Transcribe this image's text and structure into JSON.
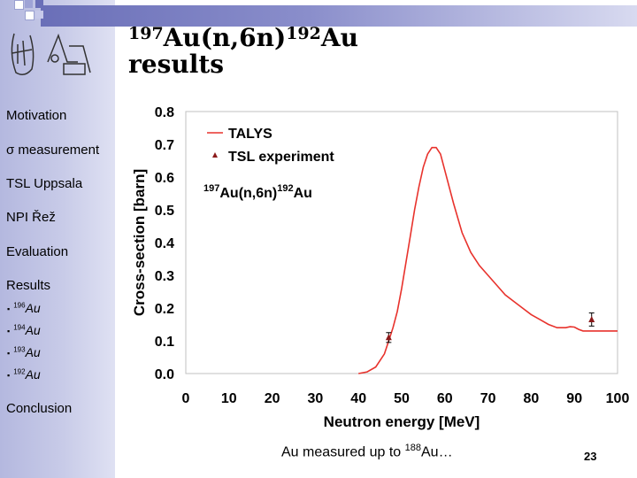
{
  "slide": {
    "title_part1_mass": "197",
    "title_part1": "Au(n,6n)",
    "title_part2_mass": "192",
    "title_part2": "Au",
    "title_line2": "results",
    "footer_note_prefix": "Au measured up to ",
    "footer_note_mass": "188",
    "footer_note_suffix": "Au…",
    "page_number": "23"
  },
  "sidebar": {
    "items": [
      {
        "label": "Motivation"
      },
      {
        "label": "σ measurement"
      },
      {
        "label": "TSL Uppsala"
      },
      {
        "label": "NPI Řež"
      },
      {
        "label": "Evaluation"
      },
      {
        "label": "Results"
      }
    ],
    "sub_items": [
      {
        "bullet": "▪",
        "mass": "196",
        "label": "Au"
      },
      {
        "bullet": "▪",
        "mass": "194",
        "label": "Au"
      },
      {
        "bullet": "▪",
        "mass": "193",
        "label": "Au"
      },
      {
        "bullet": "▪",
        "mass": "192",
        "label": "Au"
      }
    ],
    "last_item": "Conclusion"
  },
  "colors": {
    "sidebar": "#c8cbe8",
    "topbar": "#6a6fb8",
    "talys_line": "#e8322c",
    "experiment_marker": "#8b1a1a"
  },
  "chart_data": {
    "type": "line",
    "xlabel": "Neutron energy [MeV]",
    "ylabel": "Cross-section [barn]",
    "xlim": [
      0,
      100
    ],
    "ylim": [
      0,
      0.8
    ],
    "xticks": [
      "0",
      "10",
      "20",
      "30",
      "40",
      "50",
      "60",
      "70",
      "80",
      "90",
      "100"
    ],
    "yticks": [
      "0.0",
      "0.1",
      "0.2",
      "0.3",
      "0.4",
      "0.5",
      "0.6",
      "0.7",
      "0.8"
    ],
    "annotation": {
      "mass1": "197",
      "text1": "Au(n,6n)",
      "mass2": "192",
      "text2": "Au"
    },
    "legend": {
      "position": "top-left"
    },
    "series": [
      {
        "name": "TALYS",
        "kind": "line",
        "x": [
          40,
          42,
          44,
          46,
          47,
          48,
          49,
          50,
          51,
          52,
          53,
          54,
          55,
          56,
          57,
          58,
          59,
          60,
          62,
          64,
          66,
          68,
          70,
          72,
          74,
          76,
          78,
          80,
          82,
          84,
          86,
          88,
          89,
          90,
          91,
          92,
          93,
          94,
          96,
          98,
          100
        ],
        "y": [
          0.0,
          0.005,
          0.02,
          0.06,
          0.1,
          0.14,
          0.19,
          0.26,
          0.34,
          0.42,
          0.5,
          0.57,
          0.63,
          0.67,
          0.69,
          0.69,
          0.67,
          0.62,
          0.52,
          0.43,
          0.37,
          0.33,
          0.3,
          0.27,
          0.24,
          0.22,
          0.2,
          0.18,
          0.165,
          0.15,
          0.14,
          0.14,
          0.143,
          0.142,
          0.135,
          0.13,
          0.13,
          0.13,
          0.13,
          0.13,
          0.13
        ]
      },
      {
        "name": "TSL experiment",
        "kind": "points",
        "x": [
          47,
          94
        ],
        "y": [
          0.11,
          0.165
        ],
        "yerr": [
          0.015,
          0.02
        ]
      }
    ]
  }
}
